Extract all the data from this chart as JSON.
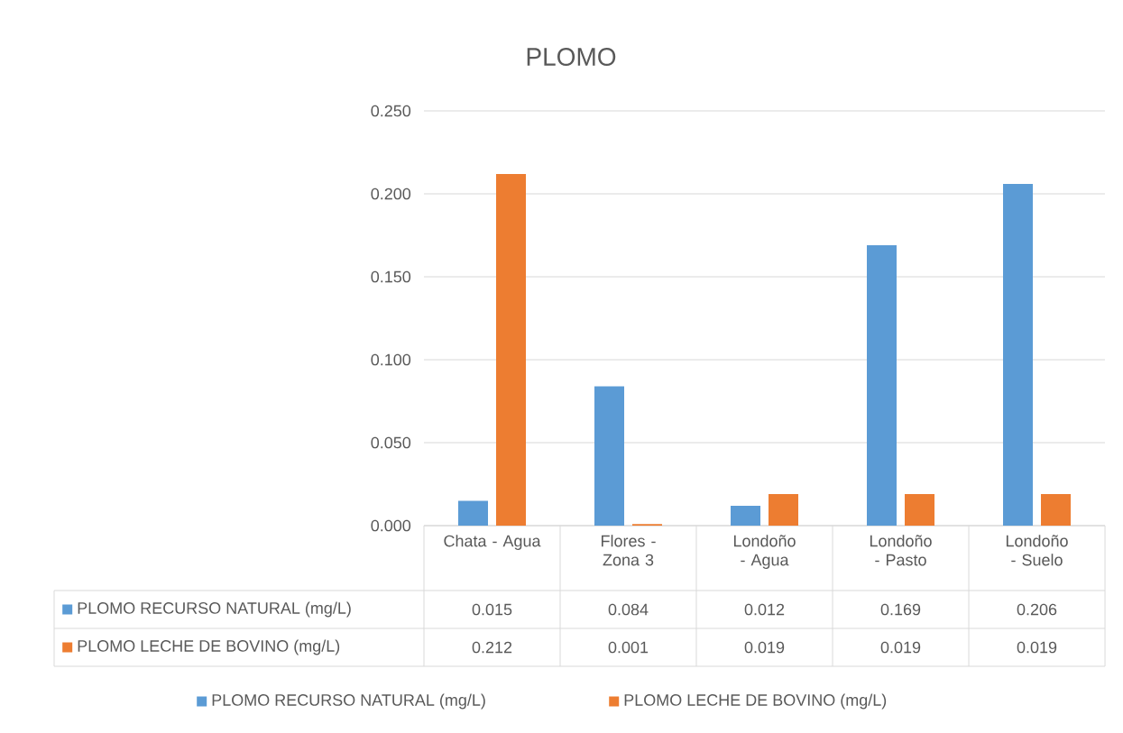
{
  "chart_data": {
    "type": "bar",
    "title": "PLOMO",
    "categories": [
      "Chata - Agua",
      "Flores - Zona 3",
      "Londoño - Agua",
      "Londoño - Pasto",
      "Londoño - Suelo"
    ],
    "series": [
      {
        "name": "PLOMO RECURSO NATURAL (mg/L)",
        "color": "#5b9bd5",
        "values": [
          0.015,
          0.084,
          0.012,
          0.169,
          0.206
        ]
      },
      {
        "name": "PLOMO LECHE DE BOVINO (mg/L)",
        "color": "#ed7d31",
        "values": [
          0.212,
          0.001,
          0.019,
          0.019,
          0.019
        ]
      }
    ],
    "ylim": [
      0,
      0.25
    ],
    "yticks": [
      {
        "value": 0,
        "label": "0.000"
      },
      {
        "value": 0.05,
        "label": "0.050"
      },
      {
        "value": 0.1,
        "label": "0.100"
      },
      {
        "value": 0.15,
        "label": "0.150"
      },
      {
        "value": 0.2,
        "label": "0.200"
      },
      {
        "value": 0.25,
        "label": "0.250"
      }
    ],
    "grid": "y",
    "legend": "bottom",
    "data_labels": true
  }
}
